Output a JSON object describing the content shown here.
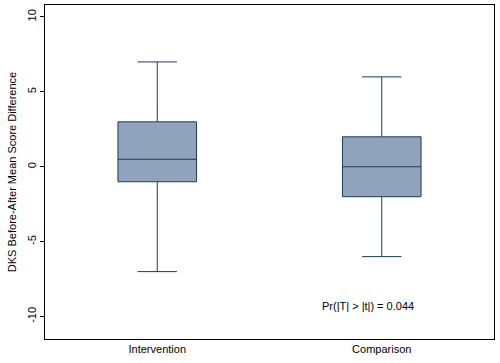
{
  "chart_data": {
    "type": "box",
    "y_label": "DKS Before-After Mean Score Difference",
    "categories": [
      "Intervention",
      "Comparison"
    ],
    "min": [
      -7,
      -6
    ],
    "q1": [
      -1,
      -2
    ],
    "median": [
      0.5,
      0
    ],
    "q3": [
      3,
      2
    ],
    "max": [
      7,
      6
    ],
    "color": "#8fa3bc",
    "ylim": [
      -11.5,
      10.8
    ],
    "yticks": [
      -10,
      -5,
      0,
      5,
      10
    ],
    "grid": false,
    "annotations": [
      "Pr(|T| > |t|) = 0.044"
    ]
  }
}
